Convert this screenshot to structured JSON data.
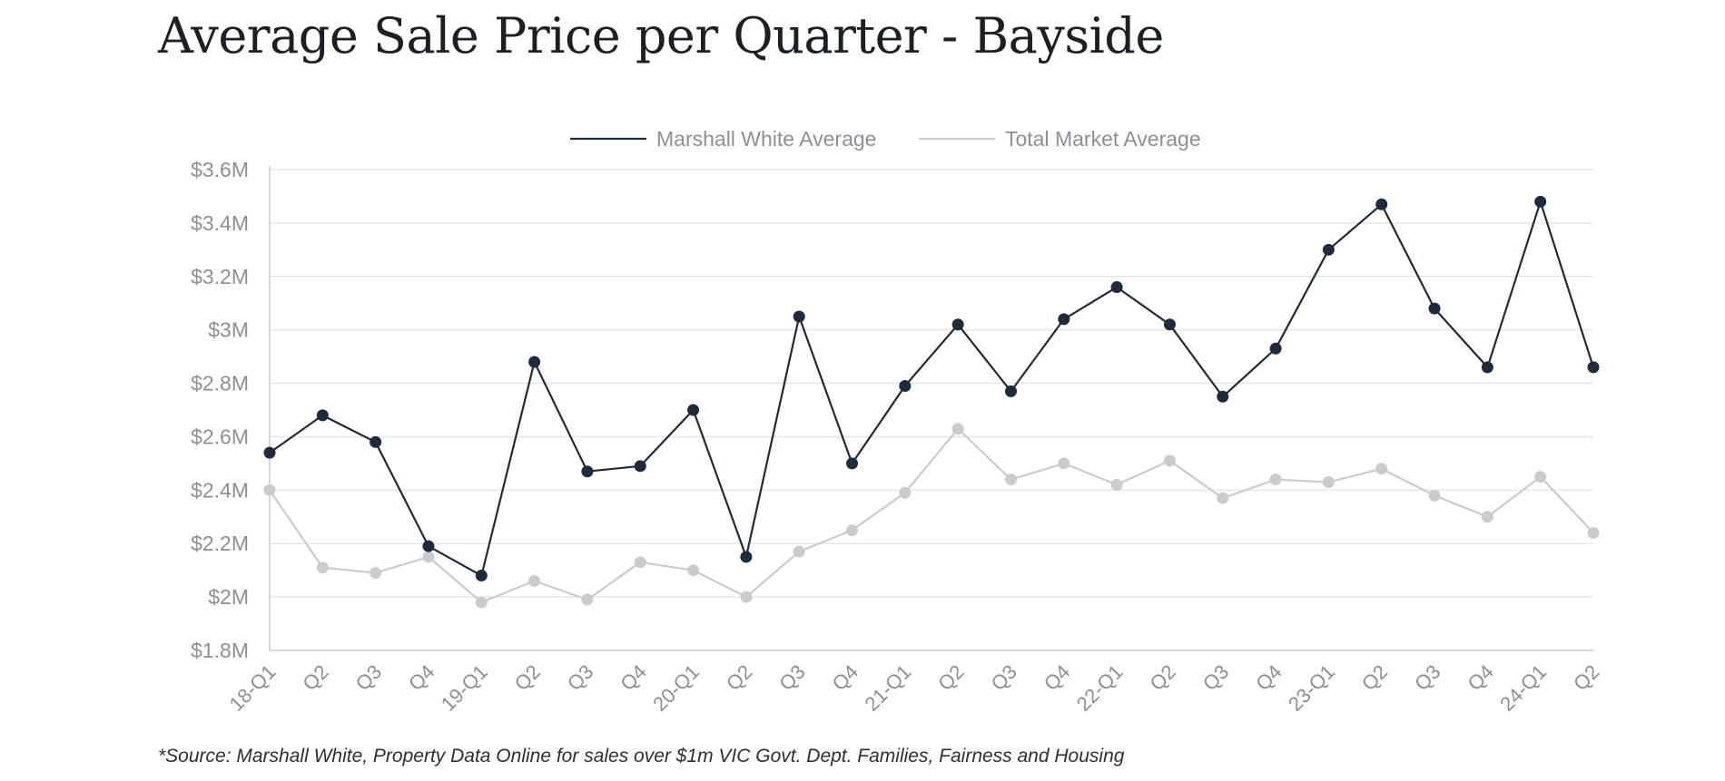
{
  "chart_data": {
    "type": "line",
    "title": "Average Sale Price per Quarter - Bayside",
    "categories": [
      "18-Q1",
      "Q2",
      "Q3",
      "Q4",
      "19-Q1",
      "Q2",
      "Q3",
      "Q4",
      "20-Q1",
      "Q2",
      "Q3",
      "Q4",
      "21-Q1",
      "Q2",
      "Q3",
      "Q4",
      "22-Q1",
      "Q2",
      "Q3",
      "Q4",
      "23-Q1",
      "Q2",
      "Q3",
      "Q4",
      "24-Q1",
      "Q2"
    ],
    "series": [
      {
        "name": "Marshall White Average",
        "color": "#1d2b3c",
        "values": [
          2.54,
          2.68,
          2.58,
          2.19,
          2.08,
          2.88,
          2.47,
          2.49,
          2.7,
          2.15,
          3.05,
          2.5,
          2.79,
          3.02,
          2.77,
          3.04,
          3.16,
          3.02,
          2.75,
          2.93,
          3.3,
          3.47,
          3.08,
          2.86,
          3.48,
          2.86
        ]
      },
      {
        "name": "Total Market Average",
        "color": "#c8ccd1",
        "values": [
          2.4,
          2.11,
          2.09,
          2.15,
          1.98,
          2.06,
          1.99,
          2.13,
          2.1,
          2.0,
          2.17,
          2.25,
          2.39,
          2.63,
          2.44,
          2.5,
          2.42,
          2.51,
          2.37,
          2.44,
          2.43,
          2.48,
          2.38,
          2.3,
          2.45,
          2.24
        ]
      }
    ],
    "yticks": [
      1.8,
      2.0,
      2.2,
      2.4,
      2.6,
      2.8,
      3.0,
      3.2,
      3.4,
      3.6
    ],
    "ytick_labels": [
      "$1.8M",
      "$2M",
      "$2.2M",
      "$2.4M",
      "$2.6M",
      "$2.8M",
      "$3M",
      "$3.2M",
      "$3.4M",
      "$3.6M"
    ],
    "ylim": [
      1.8,
      3.6
    ],
    "grid": true,
    "legend": "top-center",
    "source": "*Source: Marshall White, Property Data Online for sales over $1m VIC Govt. Dept. Families, Fairness and Housing"
  },
  "colors": {
    "grid": "#e4e6e9",
    "axis": "#c9ccd0",
    "tick_text": "#8a9098",
    "legend_text": "#8a9098"
  }
}
